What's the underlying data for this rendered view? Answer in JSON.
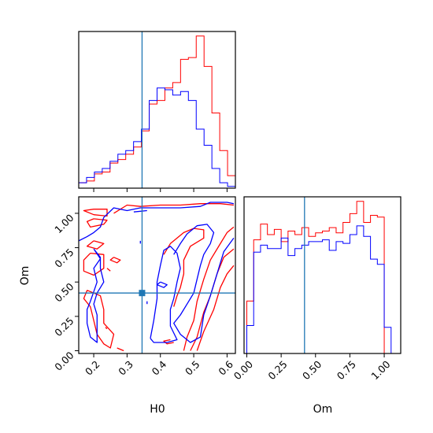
{
  "chart_data": [
    {
      "type": "histogram",
      "panel": "H0 marginal",
      "xlim": [
        0.155,
        0.625
      ],
      "truth": 0.345,
      "bins": [
        0.155,
        0.1785,
        0.202,
        0.2255,
        0.249,
        0.2725,
        0.296,
        0.3195,
        0.343,
        0.3665,
        0.39,
        0.4135,
        0.437,
        0.4605,
        0.484,
        0.5075,
        0.531,
        0.5545,
        0.578,
        0.6015,
        0.625
      ],
      "series": [
        {
          "color": "#ff0000",
          "values": [
            0.3,
            0.4,
            0.8,
            0.9,
            1.4,
            1.6,
            1.9,
            2.3,
            3.2,
            4.7,
            4.9,
            5.6,
            5.9,
            7.2,
            7.3,
            8.5,
            6.8,
            4.2,
            2.1,
            0.7
          ]
        },
        {
          "color": "#0000ff",
          "values": [
            0.3,
            0.6,
            0.9,
            1.1,
            1.5,
            1.9,
            2.1,
            2.6,
            3.3,
            4.9,
            5.6,
            5.5,
            5.2,
            5.4,
            4.9,
            3.3,
            2.4,
            1.1,
            0.3,
            0.1
          ]
        }
      ]
    },
    {
      "type": "contour",
      "panel": "H0 vs Om",
      "xlabel": "H0",
      "ylabel": "Om",
      "xlim": [
        0.155,
        0.625
      ],
      "ylim": [
        -0.02,
        1.12
      ],
      "xticks": [
        "0.2",
        "0.3",
        "0.4",
        "0.5",
        "0.6"
      ],
      "xtick_values": [
        0.2,
        0.3,
        0.4,
        0.5,
        0.6
      ],
      "yticks": [
        "0.00",
        "0.25",
        "0.50",
        "0.75",
        "1.00"
      ],
      "ytick_values": [
        0.0,
        0.25,
        0.5,
        0.75,
        1.0
      ],
      "truth": {
        "x": 0.345,
        "y": 0.42
      },
      "series": [
        {
          "color": "#ff0000",
          "contours": [
            [
              [
                0.2,
                1.03
              ],
              [
                0.17,
                1.02
              ],
              [
                0.2,
                0.99
              ],
              [
                0.24,
                0.98
              ],
              [
                0.24,
                1.03
              ],
              [
                0.2,
                1.03
              ]
            ],
            [
              [
                0.26,
                1.0
              ],
              [
                0.3,
                1.06
              ],
              [
                0.34,
                1.05
              ],
              [
                0.4,
                1.06
              ],
              [
                0.46,
                1.06
              ],
              [
                0.52,
                1.07
              ],
              [
                0.58,
                1.07
              ],
              [
                0.62,
                1.06
              ]
            ],
            [
              [
                0.2,
                0.96
              ],
              [
                0.18,
                0.94
              ],
              [
                0.19,
                0.9
              ],
              [
                0.23,
                0.92
              ],
              [
                0.24,
                0.95
              ],
              [
                0.2,
                0.96
              ]
            ],
            [
              [
                0.2,
                0.8
              ],
              [
                0.18,
                0.76
              ],
              [
                0.21,
                0.74
              ],
              [
                0.23,
                0.78
              ],
              [
                0.2,
                0.8
              ]
            ],
            [
              [
                0.19,
                0.71
              ],
              [
                0.17,
                0.66
              ],
              [
                0.17,
                0.58
              ],
              [
                0.2,
                0.55
              ],
              [
                0.23,
                0.6
              ],
              [
                0.23,
                0.7
              ],
              [
                0.19,
                0.71
              ]
            ],
            [
              [
                0.18,
                0.44
              ],
              [
                0.17,
                0.38
              ],
              [
                0.19,
                0.32
              ],
              [
                0.2,
                0.22
              ],
              [
                0.21,
                0.12
              ],
              [
                0.23,
                0.05
              ],
              [
                0.25,
                0.02
              ],
              [
                0.26,
                0.12
              ],
              [
                0.23,
                0.2
              ],
              [
                0.23,
                0.3
              ],
              [
                0.22,
                0.4
              ],
              [
                0.18,
                0.44
              ]
            ],
            [
              [
                0.27,
                0.02
              ],
              [
                0.29,
                0.0
              ]
            ],
            [
              [
                0.41,
                0.7
              ],
              [
                0.43,
                0.78
              ],
              [
                0.47,
                0.86
              ],
              [
                0.5,
                0.89
              ],
              [
                0.53,
                0.88
              ],
              [
                0.53,
                0.82
              ],
              [
                0.49,
                0.76
              ],
              [
                0.47,
                0.66
              ],
              [
                0.47,
                0.56
              ],
              [
                0.46,
                0.46
              ],
              [
                0.45,
                0.4
              ],
              [
                0.44,
                0.32
              ]
            ],
            [
              [
                0.43,
                0.08
              ],
              [
                0.41,
                0.07
              ],
              [
                0.42,
                0.05
              ],
              [
                0.44,
                0.06
              ]
            ],
            [
              [
                0.47,
                0.0
              ],
              [
                0.48,
                0.1
              ],
              [
                0.5,
                0.22
              ],
              [
                0.51,
                0.36
              ],
              [
                0.53,
                0.52
              ],
              [
                0.55,
                0.66
              ],
              [
                0.58,
                0.78
              ],
              [
                0.6,
                0.86
              ],
              [
                0.62,
                0.9
              ]
            ],
            [
              [
                0.49,
                0.0
              ],
              [
                0.51,
                0.1
              ],
              [
                0.53,
                0.28
              ],
              [
                0.55,
                0.4
              ],
              [
                0.57,
                0.56
              ],
              [
                0.59,
                0.68
              ],
              [
                0.62,
                0.74
              ]
            ],
            [
              [
                0.51,
                0.0
              ],
              [
                0.53,
                0.14
              ],
              [
                0.56,
                0.3
              ],
              [
                0.58,
                0.46
              ],
              [
                0.6,
                0.56
              ],
              [
                0.62,
                0.62
              ]
            ],
            [
              [
                0.26,
                0.68
              ],
              [
                0.28,
                0.66
              ],
              [
                0.27,
                0.64
              ],
              [
                0.25,
                0.66
              ],
              [
                0.26,
                0.68
              ]
            ],
            [
              [
                0.24,
                0.6
              ],
              [
                0.25,
                0.58
              ]
            ],
            [
              [
                0.235,
                0.17
              ],
              [
                0.24,
                0.16
              ]
            ]
          ]
        },
        {
          "color": "#0000ff",
          "contours": [
            [
              [
                0.155,
                0.8
              ],
              [
                0.18,
                0.83
              ],
              [
                0.2,
                0.86
              ],
              [
                0.22,
                0.9
              ],
              [
                0.23,
                0.97
              ],
              [
                0.26,
                1.04
              ],
              [
                0.3,
                1.02
              ],
              [
                0.34,
                1.04
              ],
              [
                0.4,
                1.04
              ],
              [
                0.46,
                1.04
              ],
              [
                0.52,
                1.05
              ],
              [
                0.55,
                1.08
              ],
              [
                0.6,
                1.08
              ],
              [
                0.62,
                1.07
              ]
            ],
            [
              [
                0.32,
                1.01
              ],
              [
                0.36,
                1.02
              ]
            ],
            [
              [
                0.2,
                0.74
              ],
              [
                0.22,
                0.67
              ],
              [
                0.2,
                0.6
              ],
              [
                0.21,
                0.5
              ],
              [
                0.2,
                0.43
              ],
              [
                0.19,
                0.36
              ],
              [
                0.18,
                0.3
              ],
              [
                0.18,
                0.2
              ],
              [
                0.19,
                0.1
              ],
              [
                0.21,
                0.06
              ],
              [
                0.21,
                0.15
              ],
              [
                0.21,
                0.26
              ],
              [
                0.2,
                0.34
              ],
              [
                0.21,
                0.42
              ],
              [
                0.23,
                0.5
              ],
              [
                0.22,
                0.6
              ],
              [
                0.22,
                0.68
              ],
              [
                0.2,
                0.74
              ]
            ],
            [
              [
                0.37,
                0.09
              ],
              [
                0.38,
                0.22
              ],
              [
                0.39,
                0.38
              ],
              [
                0.39,
                0.5
              ],
              [
                0.4,
                0.62
              ],
              [
                0.41,
                0.73
              ],
              [
                0.43,
                0.76
              ],
              [
                0.45,
                0.71
              ],
              [
                0.46,
                0.6
              ],
              [
                0.45,
                0.5
              ],
              [
                0.44,
                0.38
              ],
              [
                0.43,
                0.3
              ],
              [
                0.43,
                0.18
              ],
              [
                0.45,
                0.08
              ],
              [
                0.42,
                0.06
              ],
              [
                0.38,
                0.06
              ],
              [
                0.37,
                0.09
              ]
            ],
            [
              [
                0.44,
                0.7
              ],
              [
                0.46,
                0.78
              ],
              [
                0.48,
                0.85
              ],
              [
                0.51,
                0.91
              ],
              [
                0.54,
                0.92
              ],
              [
                0.56,
                0.86
              ],
              [
                0.55,
                0.78
              ],
              [
                0.53,
                0.7
              ],
              [
                0.52,
                0.62
              ],
              [
                0.51,
                0.52
              ],
              [
                0.5,
                0.42
              ],
              [
                0.48,
                0.34
              ],
              [
                0.46,
                0.26
              ],
              [
                0.44,
                0.2
              ],
              [
                0.46,
                0.12
              ],
              [
                0.49,
                0.06
              ],
              [
                0.52,
                0.1
              ],
              [
                0.53,
                0.26
              ],
              [
                0.55,
                0.4
              ],
              [
                0.57,
                0.56
              ],
              [
                0.59,
                0.72
              ],
              [
                0.62,
                0.82
              ]
            ],
            [
              [
                0.4,
                0.5
              ],
              [
                0.42,
                0.48
              ],
              [
                0.41,
                0.46
              ],
              [
                0.39,
                0.48
              ],
              [
                0.4,
                0.5
              ]
            ],
            [
              [
                0.34,
                0.8
              ],
              [
                0.34,
                0.78
              ]
            ],
            [
              [
                0.36,
                0.36
              ],
              [
                0.36,
                0.34
              ]
            ]
          ]
        }
      ]
    },
    {
      "type": "histogram",
      "panel": "Om marginal",
      "xlabel": "Om",
      "xlim": [
        -0.02,
        1.12
      ],
      "xticks": [
        "0.00",
        "0.25",
        "0.50",
        "0.75",
        "1.00"
      ],
      "xtick_values": [
        0.0,
        0.25,
        0.5,
        0.75,
        1.0
      ],
      "truth": 0.42,
      "bins": [
        0.0,
        0.05,
        0.1,
        0.15,
        0.2,
        0.25,
        0.3,
        0.35,
        0.4,
        0.45,
        0.5,
        0.55,
        0.6,
        0.65,
        0.7,
        0.75,
        0.8,
        0.85,
        0.9,
        0.95,
        1.0,
        1.05
      ],
      "series": [
        {
          "color": "#ff0000",
          "values": [
            3.0,
            6.5,
            7.4,
            6.8,
            7.1,
            6.4,
            7.0,
            6.8,
            7.2,
            6.7,
            6.9,
            7.0,
            7.2,
            6.9,
            7.5,
            8.0,
            8.7,
            7.5,
            7.9,
            7.8,
            0.0
          ]
        },
        {
          "color": "#0000ff",
          "values": [
            1.6,
            5.8,
            6.2,
            6.0,
            6.0,
            6.6,
            5.6,
            6.0,
            6.2,
            6.4,
            6.4,
            6.5,
            5.9,
            6.4,
            6.3,
            6.8,
            7.3,
            6.7,
            5.4,
            5.1,
            1.5
          ]
        }
      ]
    }
  ]
}
